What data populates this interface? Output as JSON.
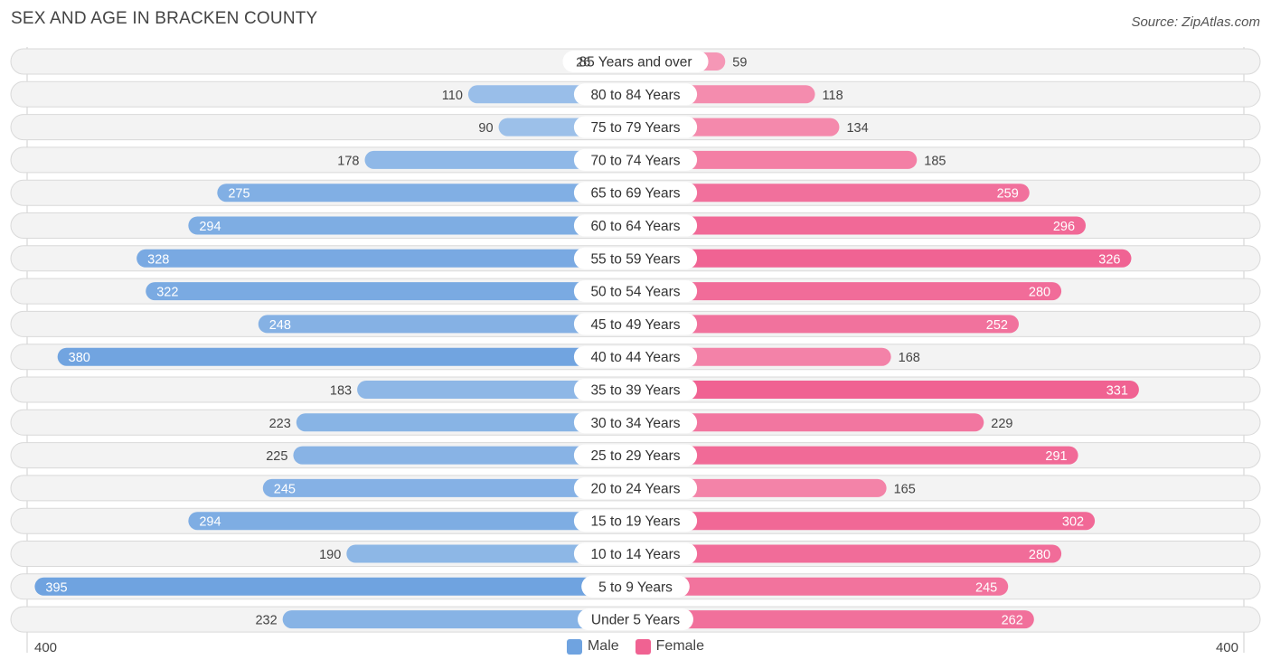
{
  "title": "SEX AND AGE IN BRACKEN COUNTY",
  "source": "Source: ZipAtlas.com",
  "legend": {
    "male_label": "Male",
    "female_label": "Female"
  },
  "axis": {
    "left_label": "400",
    "right_label": "400"
  },
  "colors": {
    "male_dark": "#6fa3e0",
    "male_light": "#a9c9ec",
    "female_dark": "#f06292",
    "female_light": "#f6a3be",
    "row_bg": "#efefef",
    "row_border": "#d9d9d9"
  },
  "chart_data": {
    "type": "bar",
    "orientation": "horizontal-diverging",
    "title": "SEX AND AGE IN BRACKEN COUNTY",
    "xlim": [
      -400,
      400
    ],
    "categories": [
      "85 Years and over",
      "80 to 84 Years",
      "75 to 79 Years",
      "70 to 74 Years",
      "65 to 69 Years",
      "60 to 64 Years",
      "55 to 59 Years",
      "50 to 54 Years",
      "45 to 49 Years",
      "40 to 44 Years",
      "35 to 39 Years",
      "30 to 34 Years",
      "25 to 29 Years",
      "20 to 24 Years",
      "15 to 19 Years",
      "10 to 14 Years",
      "5 to 9 Years",
      "Under 5 Years"
    ],
    "series": [
      {
        "name": "Male",
        "values": [
          26,
          110,
          90,
          178,
          275,
          294,
          328,
          322,
          248,
          380,
          183,
          223,
          225,
          245,
          294,
          190,
          395,
          232
        ]
      },
      {
        "name": "Female",
        "values": [
          59,
          118,
          134,
          185,
          259,
          296,
          326,
          280,
          252,
          168,
          331,
          229,
          291,
          165,
          302,
          280,
          245,
          262
        ]
      }
    ],
    "legend_position": "bottom-center"
  }
}
